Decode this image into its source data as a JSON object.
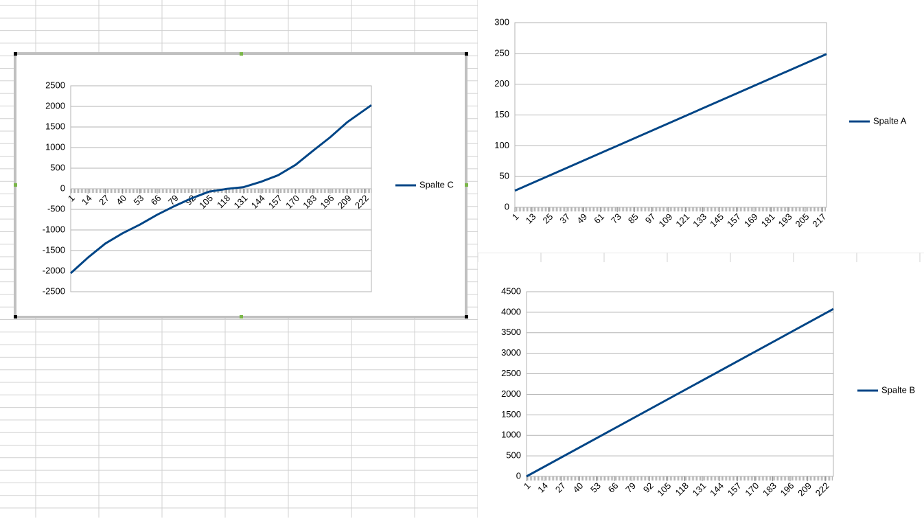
{
  "chart_data": [
    {
      "type": "line",
      "x": [
        1,
        14,
        27,
        40,
        53,
        66,
        79,
        92,
        105,
        118,
        131,
        144,
        157,
        170,
        183,
        196,
        209,
        227
      ],
      "series": [
        {
          "name": "Spalte C",
          "color": "#004586",
          "values": [
            -2050,
            -1670,
            -1330,
            -1080,
            -870,
            -630,
            -420,
            -230,
            -70,
            -5,
            40,
            170,
            330,
            580,
            920,
            1250,
            1620,
            2030
          ]
        }
      ],
      "xlim": [
        1,
        227
      ],
      "xticks": [
        1,
        14,
        27,
        40,
        53,
        66,
        79,
        92,
        105,
        118,
        131,
        144,
        157,
        170,
        183,
        196,
        209,
        222
      ],
      "ylim": [
        -2500,
        2500
      ],
      "yticks": [
        -2500,
        -2000,
        -1500,
        -1000,
        -500,
        0,
        500,
        1000,
        1500,
        2000,
        2500
      ],
      "grid": true,
      "legend": "right"
    },
    {
      "type": "line",
      "x": [
        1,
        220
      ],
      "series": [
        {
          "name": "Spalte A",
          "color": "#004586",
          "values": [
            27,
            249
          ]
        }
      ],
      "xlim": [
        1,
        220
      ],
      "xticks": [
        1,
        13,
        25,
        37,
        49,
        61,
        73,
        85,
        97,
        109,
        121,
        133,
        145,
        157,
        169,
        181,
        193,
        205,
        217
      ],
      "ylim": [
        0,
        300
      ],
      "yticks": [
        0,
        50,
        100,
        150,
        200,
        250,
        300
      ],
      "grid": true,
      "legend": "right"
    },
    {
      "type": "line",
      "x": [
        1,
        228
      ],
      "series": [
        {
          "name": "Spalte B",
          "color": "#004586",
          "values": [
            0,
            4080
          ]
        }
      ],
      "xlim": [
        1,
        228
      ],
      "xticks": [
        1,
        14,
        27,
        40,
        53,
        66,
        79,
        92,
        105,
        118,
        131,
        144,
        157,
        170,
        183,
        196,
        209,
        222
      ],
      "ylim": [
        0,
        4500
      ],
      "yticks": [
        0,
        500,
        1000,
        1500,
        2000,
        2500,
        3000,
        3500,
        4000,
        4500
      ],
      "grid": true,
      "legend": "right"
    }
  ]
}
